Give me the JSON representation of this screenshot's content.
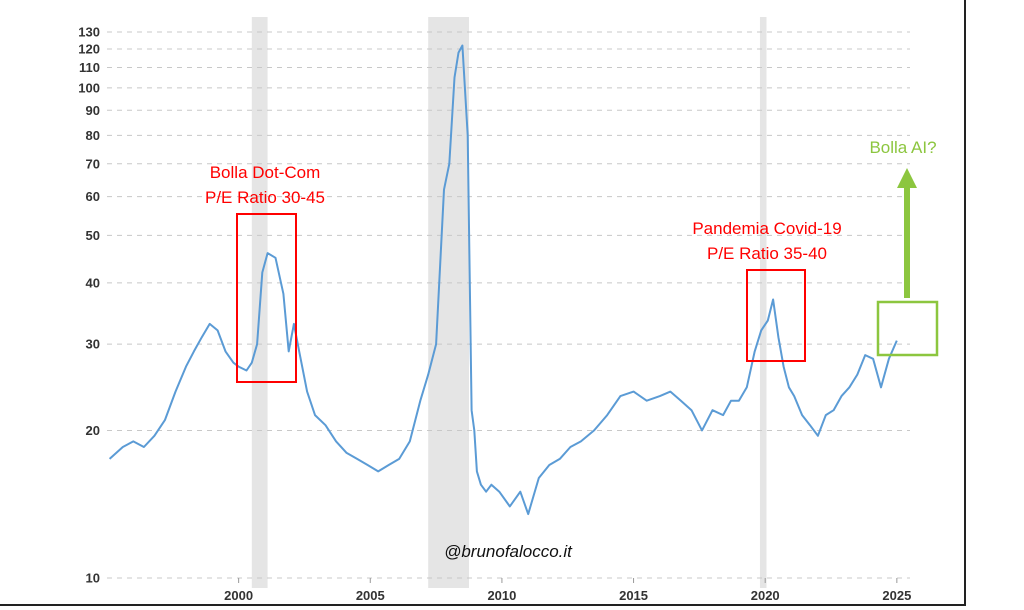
{
  "chart_data": {
    "type": "line",
    "yscale": "log",
    "ylim": [
      10,
      130
    ],
    "xlim": [
      1995,
      2025.5
    ],
    "y_ticks": [
      10,
      20,
      30,
      40,
      50,
      60,
      70,
      80,
      90,
      100,
      110,
      120,
      130
    ],
    "x_ticks": [
      2000,
      2005,
      2010,
      2015,
      2020,
      2025
    ],
    "grid": true,
    "line_color": "#5b9bd5",
    "recessions": [
      {
        "start": 2000.5,
        "end": 2001.1
      },
      {
        "start": 2007.2,
        "end": 2008.75
      },
      {
        "start": 2019.8,
        "end": 2020.05
      }
    ],
    "series": [
      {
        "name": "",
        "x": [
          1995.1,
          1995.6,
          1996.0,
          1996.4,
          1996.8,
          1997.2,
          1997.6,
          1998.0,
          1998.3,
          1998.6,
          1998.9,
          1999.2,
          1999.5,
          1999.8,
          2000.0,
          2000.3,
          2000.5,
          2000.7,
          2000.9,
          2001.1,
          2001.4,
          2001.7,
          2001.9,
          2002.1,
          2002.3,
          2002.6,
          2002.9,
          2003.3,
          2003.7,
          2004.1,
          2004.5,
          2004.9,
          2005.3,
          2005.7,
          2006.1,
          2006.5,
          2006.9,
          2007.2,
          2007.5,
          2007.8,
          2008.0,
          2008.2,
          2008.35,
          2008.5,
          2008.7,
          2008.85,
          2008.95,
          2009.05,
          2009.2,
          2009.4,
          2009.6,
          2009.9,
          2010.3,
          2010.7,
          2011.0,
          2011.4,
          2011.8,
          2012.2,
          2012.6,
          2013.0,
          2013.5,
          2014.0,
          2014.5,
          2015.0,
          2015.5,
          2016.0,
          2016.4,
          2016.8,
          2017.2,
          2017.6,
          2018.0,
          2018.4,
          2018.7,
          2019.0,
          2019.3,
          2019.6,
          2019.85,
          2020.1,
          2020.3,
          2020.5,
          2020.7,
          2020.9,
          2021.1,
          2021.4,
          2021.7,
          2022.0,
          2022.3,
          2022.6,
          2022.9,
          2023.2,
          2023.5,
          2023.8,
          2024.1,
          2024.4,
          2024.7,
          2025.0
        ],
        "values": [
          17.5,
          18.5,
          19.0,
          18.5,
          19.5,
          21.0,
          24.0,
          27.0,
          29.0,
          31.0,
          33.0,
          32.0,
          29.0,
          27.5,
          27.0,
          26.5,
          27.5,
          30.0,
          42.0,
          46.0,
          45.0,
          38.0,
          29.0,
          33.0,
          29.0,
          24.0,
          21.5,
          20.5,
          19.0,
          18.0,
          17.5,
          17.0,
          16.5,
          17.0,
          17.5,
          19.0,
          23.0,
          26.0,
          30.0,
          62.0,
          70.0,
          105.0,
          118.0,
          122.0,
          80.0,
          22.0,
          20.0,
          16.5,
          15.5,
          15.0,
          15.5,
          15.0,
          14.0,
          15.0,
          13.5,
          16.0,
          17.0,
          17.5,
          18.5,
          19.0,
          20.0,
          21.5,
          23.5,
          24.0,
          23.0,
          23.5,
          24.0,
          23.0,
          22.0,
          20.0,
          22.0,
          21.5,
          23.0,
          23.0,
          24.5,
          29.0,
          32.0,
          33.5,
          37.0,
          31.0,
          27.0,
          24.5,
          23.5,
          21.5,
          20.5,
          19.5,
          21.5,
          22.0,
          23.5,
          24.5,
          26.0,
          28.5,
          28.0,
          24.5,
          28.0,
          30.5
        ]
      }
    ],
    "annotations": [
      {
        "lines": [
          "Bolla Dot-Com",
          "P/E Ratio 30-45"
        ],
        "color": "#ff0000"
      },
      {
        "lines": [
          "Pandemia Covid-19",
          "P/E Ratio 35-40"
        ],
        "color": "#ff0000"
      },
      {
        "lines": [
          "Bolla AI?"
        ],
        "color": "#8cc63f"
      }
    ],
    "watermark": "@brunofalocco.it"
  }
}
